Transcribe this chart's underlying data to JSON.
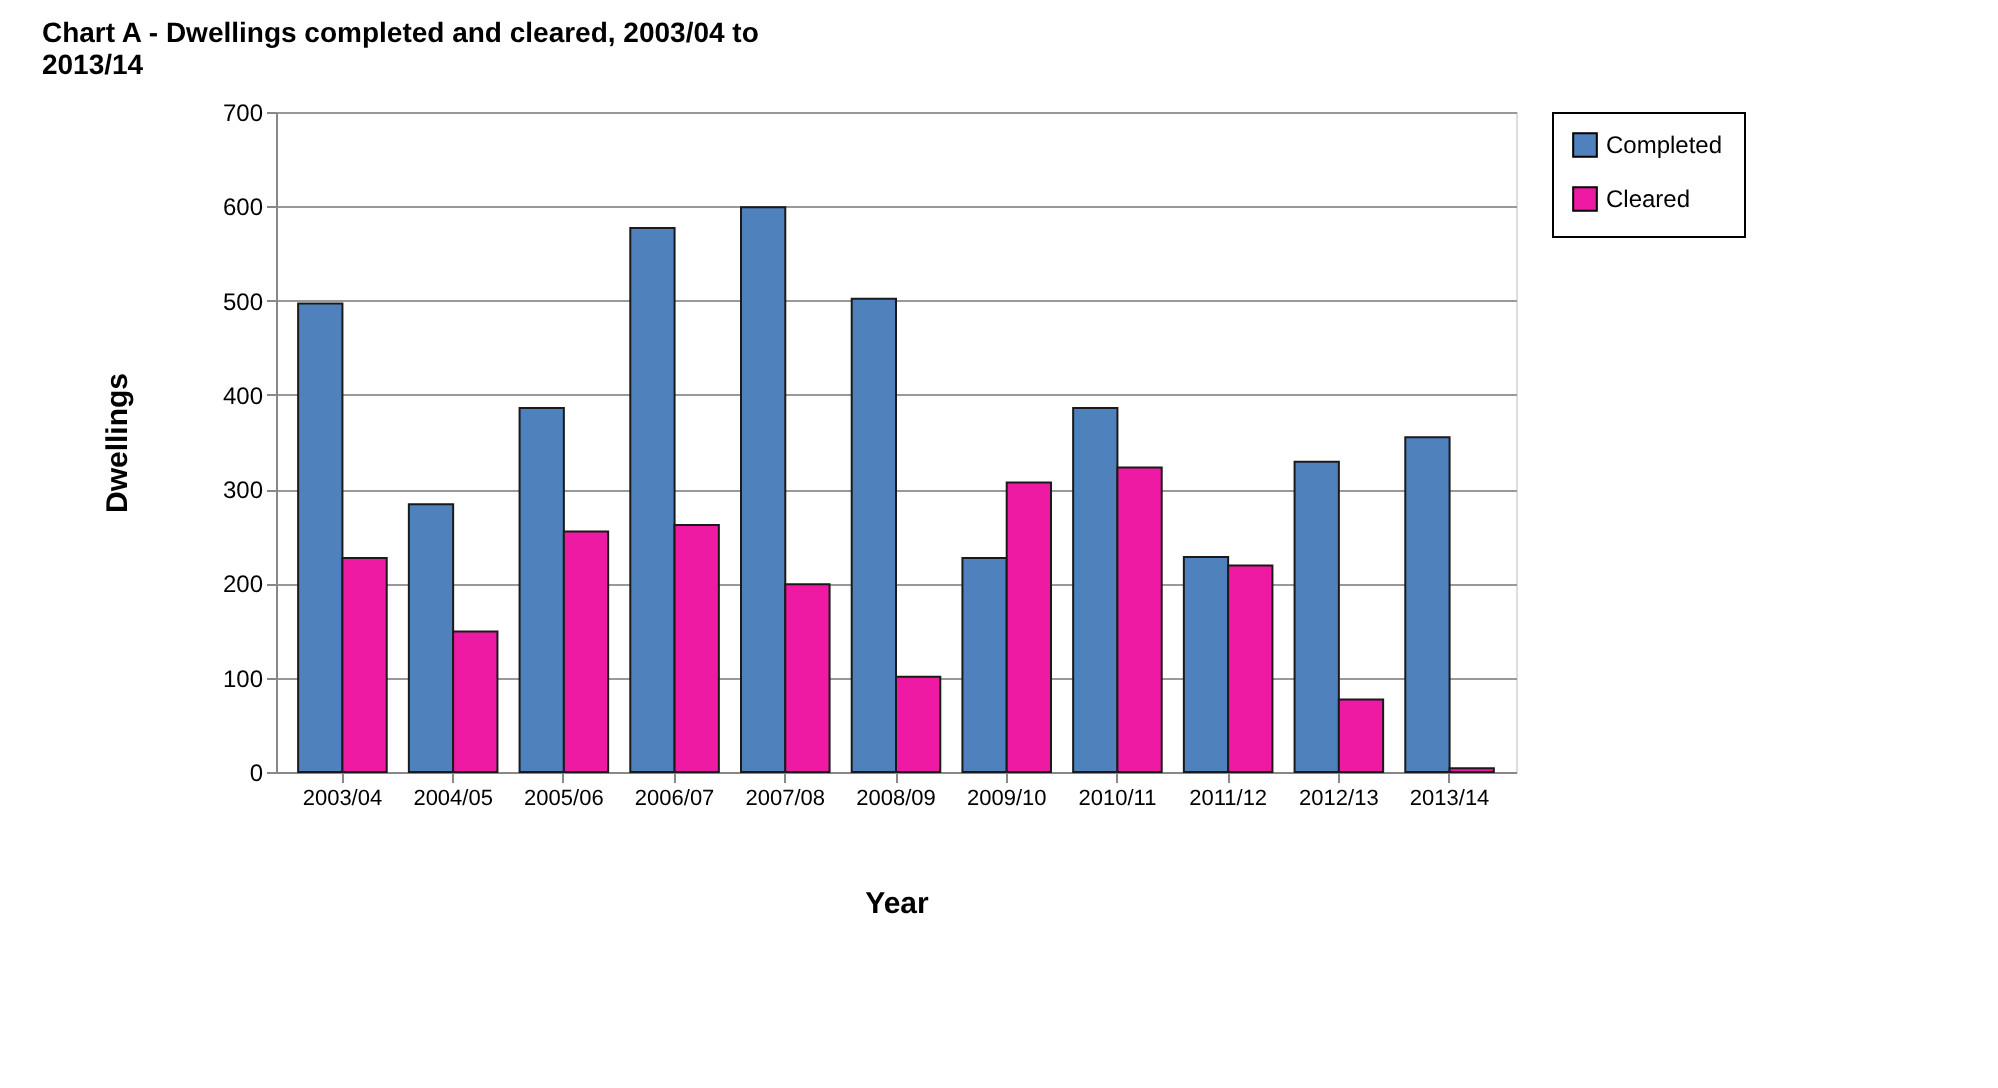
{
  "chart_data": {
    "type": "bar",
    "title": "Chart A - Dwellings completed and cleared, 2003/04 to 2013/14",
    "xlabel": "Year",
    "ylabel": "Dwellings",
    "categories": [
      "2003/04",
      "2004/05",
      "2005/06",
      "2006/07",
      "2007/08",
      "2008/09",
      "2009/10",
      "2010/11",
      "2011/12",
      "2012/13",
      "2013/14"
    ],
    "series": [
      {
        "name": "Completed",
        "color": "#4f81bd",
        "values": [
          497,
          284,
          386,
          577,
          599,
          502,
          227,
          386,
          228,
          329,
          355
        ]
      },
      {
        "name": "Cleared",
        "color": "#ee1aa4",
        "values": [
          227,
          149,
          255,
          262,
          199,
          101,
          307,
          323,
          219,
          77,
          4
        ]
      }
    ],
    "ylim": [
      0,
      700
    ],
    "yticks": [
      0,
      100,
      200,
      300,
      400,
      500,
      600,
      700
    ],
    "grid": "y",
    "legend": "right"
  }
}
